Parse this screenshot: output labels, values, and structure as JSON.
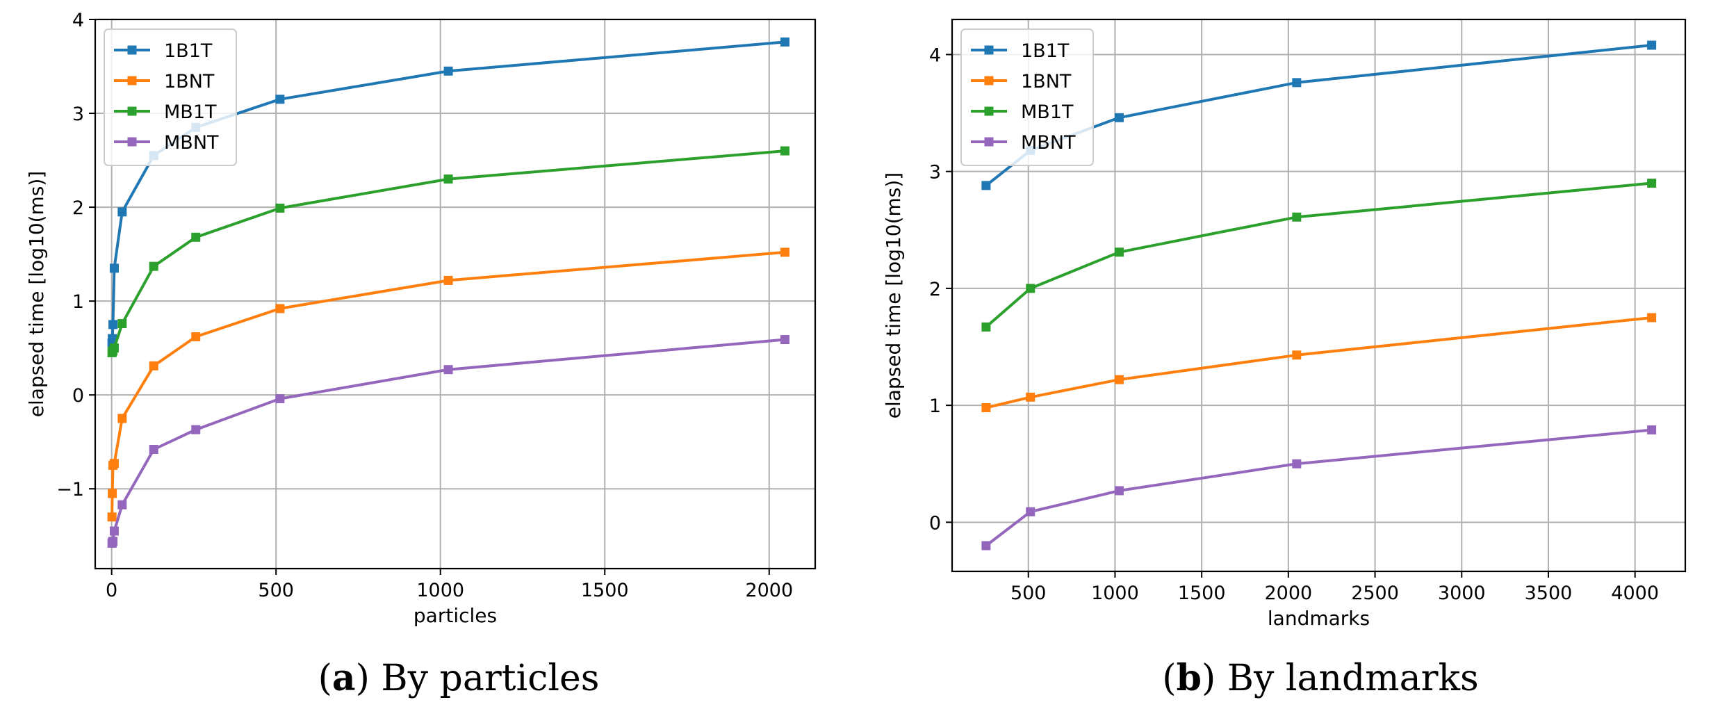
{
  "chart_data": [
    {
      "type": "line",
      "panel": "a",
      "caption_letter": "a",
      "caption_text": "By particles",
      "title": "",
      "xlabel": "particles",
      "ylabel": "elapsed time [log10(ms)]",
      "xlim": [
        -50,
        2140
      ],
      "ylim": [
        -1.85,
        4.0
      ],
      "xticks": [
        0,
        500,
        1000,
        1500,
        2000
      ],
      "yticks": [
        -1,
        0,
        1,
        2,
        3,
        4
      ],
      "ytick_labels": [
        "−1",
        "0",
        "1",
        "2",
        "3",
        "4"
      ],
      "grid": true,
      "legend_position": "top-left",
      "x": [
        1,
        2,
        4,
        8,
        32,
        128,
        256,
        512,
        1024,
        2048
      ],
      "series": [
        {
          "name": "1B1T",
          "color": "#1f77b4",
          "values": [
            0.55,
            0.6,
            0.75,
            1.35,
            1.95,
            2.55,
            2.85,
            3.15,
            3.45,
            3.76
          ]
        },
        {
          "name": "1BNT",
          "color": "#ff7f0e",
          "values": [
            -1.3,
            -1.05,
            -0.75,
            -0.73,
            -0.25,
            0.31,
            0.62,
            0.92,
            1.22,
            1.52
          ]
        },
        {
          "name": "MB1T",
          "color": "#2ca02c",
          "values": [
            0.45,
            0.46,
            0.47,
            0.5,
            0.76,
            1.37,
            1.68,
            1.99,
            2.3,
            2.6
          ]
        },
        {
          "name": "MBNT",
          "color": "#9467bd",
          "values": [
            -1.58,
            -1.57,
            -1.56,
            -1.45,
            -1.17,
            -0.58,
            -0.37,
            -0.04,
            0.27,
            0.59
          ]
        }
      ]
    },
    {
      "type": "line",
      "panel": "b",
      "caption_letter": "b",
      "caption_text": "By landmarks",
      "title": "",
      "xlabel": "landmarks",
      "ylabel": "elapsed time [log10(ms)]",
      "xlim": [
        60,
        4290
      ],
      "ylim": [
        -0.42,
        4.3
      ],
      "xticks": [
        500,
        1000,
        1500,
        2000,
        2500,
        3000,
        3500,
        4000
      ],
      "yticks": [
        0,
        1,
        2,
        3,
        4
      ],
      "ytick_labels": [
        "0",
        "1",
        "2",
        "3",
        "4"
      ],
      "grid": true,
      "legend_position": "top-left",
      "x": [
        256,
        512,
        1024,
        2048,
        4096
      ],
      "series": [
        {
          "name": "1B1T",
          "color": "#1f77b4",
          "values": [
            2.88,
            3.18,
            3.46,
            3.76,
            4.08
          ]
        },
        {
          "name": "1BNT",
          "color": "#ff7f0e",
          "values": [
            0.98,
            1.07,
            1.22,
            1.43,
            1.75
          ]
        },
        {
          "name": "MB1T",
          "color": "#2ca02c",
          "values": [
            1.67,
            2.0,
            2.31,
            2.61,
            2.9
          ]
        },
        {
          "name": "MBNT",
          "color": "#9467bd",
          "values": [
            -0.2,
            0.09,
            0.27,
            0.5,
            0.79
          ]
        }
      ]
    }
  ]
}
